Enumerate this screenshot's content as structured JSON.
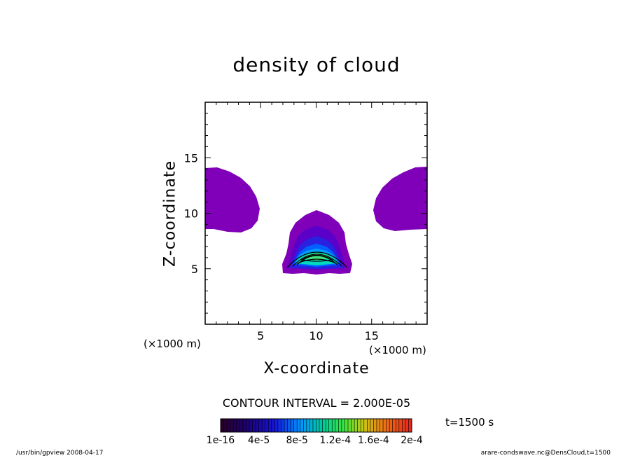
{
  "chart_data": {
    "type": "heatmap",
    "title": "density of cloud",
    "xlabel": "X-coordinate",
    "ylabel": "Z-coordinate",
    "x_unit": "(×1000 m)",
    "y_unit": "(×1000 m)",
    "xlim": [
      0,
      20
    ],
    "ylim": [
      0,
      20
    ],
    "x_ticks": [
      "5",
      "10",
      "15"
    ],
    "y_ticks": [
      "5",
      "10",
      "15"
    ],
    "contour_interval": "CONTOUR INTERVAL = 2.000E-05",
    "colorbar_labels": [
      "1e-16",
      "4e-5",
      "8e-5",
      "1.2e-4",
      "1.6e-4",
      "2e-4"
    ],
    "colors": {
      "cloud_low": "#7f00b8",
      "levels": [
        "#7f00b8",
        "#5a00c8",
        "#2a20e0",
        "#0060ff",
        "#00a0ff",
        "#00d8c0",
        "#40e880"
      ]
    },
    "time": "t=1500 s",
    "footer_left": "/usr/bin/gpview   2008-04-17",
    "footer_right": "arare-condswave.nc@DensCloud,t=1500"
  }
}
